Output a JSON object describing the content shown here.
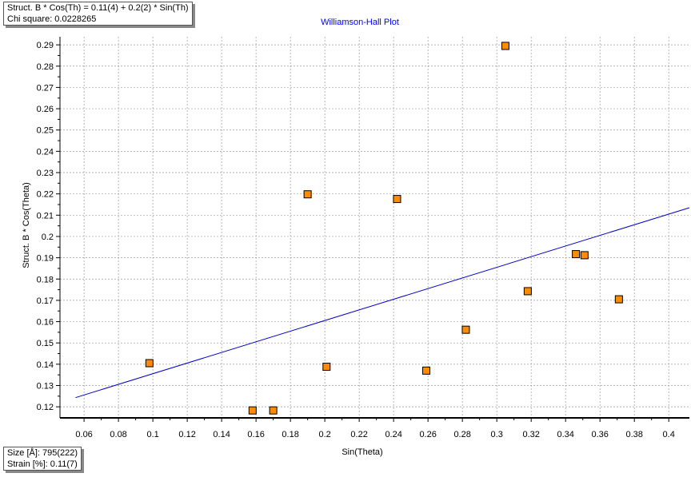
{
  "fit_box": {
    "line1": "Struct. B * Cos(Th) = 0.11(4) + 0.2(2) * Sin(Th)",
    "line2": "Chi square: 0.0228265"
  },
  "stats_box": {
    "size": "Size [Å]: 795(222)",
    "strain": "Strain [%]: 0.11(7)"
  },
  "chart_data": {
    "type": "scatter",
    "title": "Williamson-Hall Plot",
    "xlabel": "Sin(Theta)",
    "ylabel": "Struct. B * Cos(Theta)",
    "xlim": [
      0.046,
      0.412
    ],
    "ylim": [
      0.1148,
      0.2938
    ],
    "xticks": [
      0.06,
      0.08,
      0.1,
      0.12,
      0.14,
      0.16,
      0.18,
      0.2,
      0.22,
      0.24,
      0.26,
      0.28,
      0.3,
      0.32,
      0.34,
      0.36,
      0.38,
      0.4
    ],
    "yticks": [
      0.12,
      0.13,
      0.14,
      0.15,
      0.16,
      0.17,
      0.18,
      0.19,
      0.2,
      0.21,
      0.22,
      0.23,
      0.24,
      0.25,
      0.26,
      0.27,
      0.28,
      0.29
    ],
    "grid": true,
    "points": [
      {
        "x": 0.098,
        "y": 0.1405
      },
      {
        "x": 0.158,
        "y": 0.1183
      },
      {
        "x": 0.17,
        "y": 0.1183
      },
      {
        "x": 0.19,
        "y": 0.2198
      },
      {
        "x": 0.201,
        "y": 0.1388
      },
      {
        "x": 0.242,
        "y": 0.2176
      },
      {
        "x": 0.259,
        "y": 0.137
      },
      {
        "x": 0.282,
        "y": 0.1562
      },
      {
        "x": 0.305,
        "y": 0.2895
      },
      {
        "x": 0.318,
        "y": 0.1743
      },
      {
        "x": 0.346,
        "y": 0.1917
      },
      {
        "x": 0.351,
        "y": 0.1912
      },
      {
        "x": 0.371,
        "y": 0.1705
      }
    ],
    "fit_line": {
      "x": [
        0.055,
        0.412
      ],
      "y": [
        0.1243,
        0.2135
      ]
    },
    "colors": {
      "point_fill": "#ff8c00",
      "point_edge": "#000000",
      "fit_line": "#0000cc",
      "grid": "#999999",
      "title": "#0000ff"
    }
  }
}
